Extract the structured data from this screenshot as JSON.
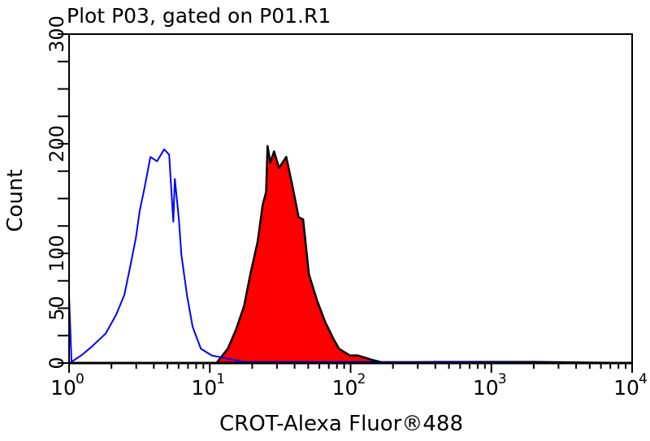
{
  "chart_data": {
    "type": "area",
    "title": "Plot P03, gated on P01.R1",
    "xlabel": "CROT-Alexa Fluor®488",
    "ylabel": "Count",
    "xscale": "log",
    "xlim": [
      1,
      10000
    ],
    "ylim": [
      0,
      300
    ],
    "x_ticks": [
      {
        "base": "10",
        "exp": "0",
        "value": 1
      },
      {
        "base": "10",
        "exp": "1",
        "value": 10
      },
      {
        "base": "10",
        "exp": "2",
        "value": 100
      },
      {
        "base": "10",
        "exp": "3",
        "value": 1000
      },
      {
        "base": "10",
        "exp": "4",
        "value": 10000
      }
    ],
    "y_ticks": [
      "0",
      "50",
      "100",
      "200",
      "300"
    ],
    "y_tick_values": [
      0,
      50,
      100,
      200,
      300
    ],
    "grid": false,
    "series": [
      {
        "style": "outline",
        "color": "#0000ff",
        "x": [
          1.0,
          1.04,
          1.22,
          1.45,
          1.82,
          2.16,
          2.47,
          2.71,
          2.98,
          3.18,
          3.45,
          3.78,
          4.21,
          4.74,
          5.14,
          5.5,
          5.64,
          6.03,
          6.28,
          6.88,
          7.55,
          8.63,
          10.3,
          12.3,
          17.5,
          66,
          487,
          10000
        ],
        "y": [
          62,
          1,
          7,
          15,
          27,
          44,
          62,
          87,
          114,
          139,
          161,
          188,
          184,
          195,
          190,
          129,
          168,
          131,
          99,
          62,
          33,
          13,
          7,
          5,
          1,
          1,
          1,
          0
        ]
      },
      {
        "style": "filled",
        "color": "#ff0000",
        "stroke": "#000000",
        "x": [
          11.3,
          13.4,
          15.3,
          17.5,
          19.4,
          21.9,
          23.7,
          25.1,
          25.7,
          26.9,
          28.6,
          31.0,
          34.9,
          38.7,
          42.7,
          46.0,
          50.6,
          57.8,
          66.2,
          75.6,
          82.7,
          98.5,
          112,
          141,
          175,
          400,
          2000,
          10000
        ],
        "y": [
          1,
          13,
          30,
          52,
          81,
          111,
          144,
          156,
          198,
          183,
          193,
          178,
          188,
          161,
          133,
          131,
          81,
          57,
          37,
          22,
          13,
          7,
          7,
          3,
          0,
          1,
          1,
          0
        ]
      }
    ]
  }
}
